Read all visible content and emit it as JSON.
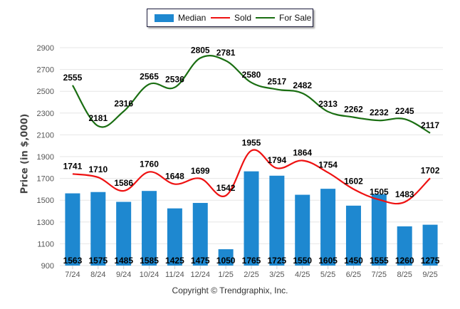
{
  "legend": {
    "median_label": "Median",
    "sold_label": "Sold",
    "for_sale_label": "For Sale"
  },
  "colors": {
    "median": "#1e88d0",
    "sold": "#ee1111",
    "for_sale": "#1a6e12",
    "grid": "#e6e6e6",
    "tick_text": "#555555"
  },
  "copyright": "Copyright © Trendgraphix, Inc.",
  "chart_data": {
    "type": "bar",
    "title": "",
    "xlabel": "",
    "ylabel": "Price (in $,000)",
    "ylim": [
      900,
      2900
    ],
    "yticks": [
      900,
      1100,
      1300,
      1500,
      1700,
      1900,
      2100,
      2300,
      2500,
      2700,
      2900
    ],
    "grid": true,
    "legend_position": "top-center",
    "categories": [
      "7/24",
      "8/24",
      "9/24",
      "10/24",
      "11/24",
      "12/24",
      "1/25",
      "2/25",
      "3/25",
      "4/25",
      "5/25",
      "6/25",
      "7/25",
      "8/25",
      "9/25"
    ],
    "series": [
      {
        "name": "Median",
        "type": "bar",
        "values": [
          1563,
          1575,
          1485,
          1585,
          1425,
          1475,
          1050,
          1765,
          1725,
          1550,
          1605,
          1450,
          1555,
          1260,
          1275
        ]
      },
      {
        "name": "Sold",
        "type": "line",
        "values": [
          1741,
          1710,
          1586,
          1760,
          1648,
          1699,
          1542,
          1955,
          1794,
          1864,
          1754,
          1602,
          1505,
          1483,
          1702
        ]
      },
      {
        "name": "For Sale",
        "type": "line",
        "values": [
          2555,
          2181,
          2316,
          2565,
          2536,
          2805,
          2781,
          2580,
          2517,
          2482,
          2313,
          2262,
          2232,
          2245,
          2117
        ]
      }
    ]
  }
}
